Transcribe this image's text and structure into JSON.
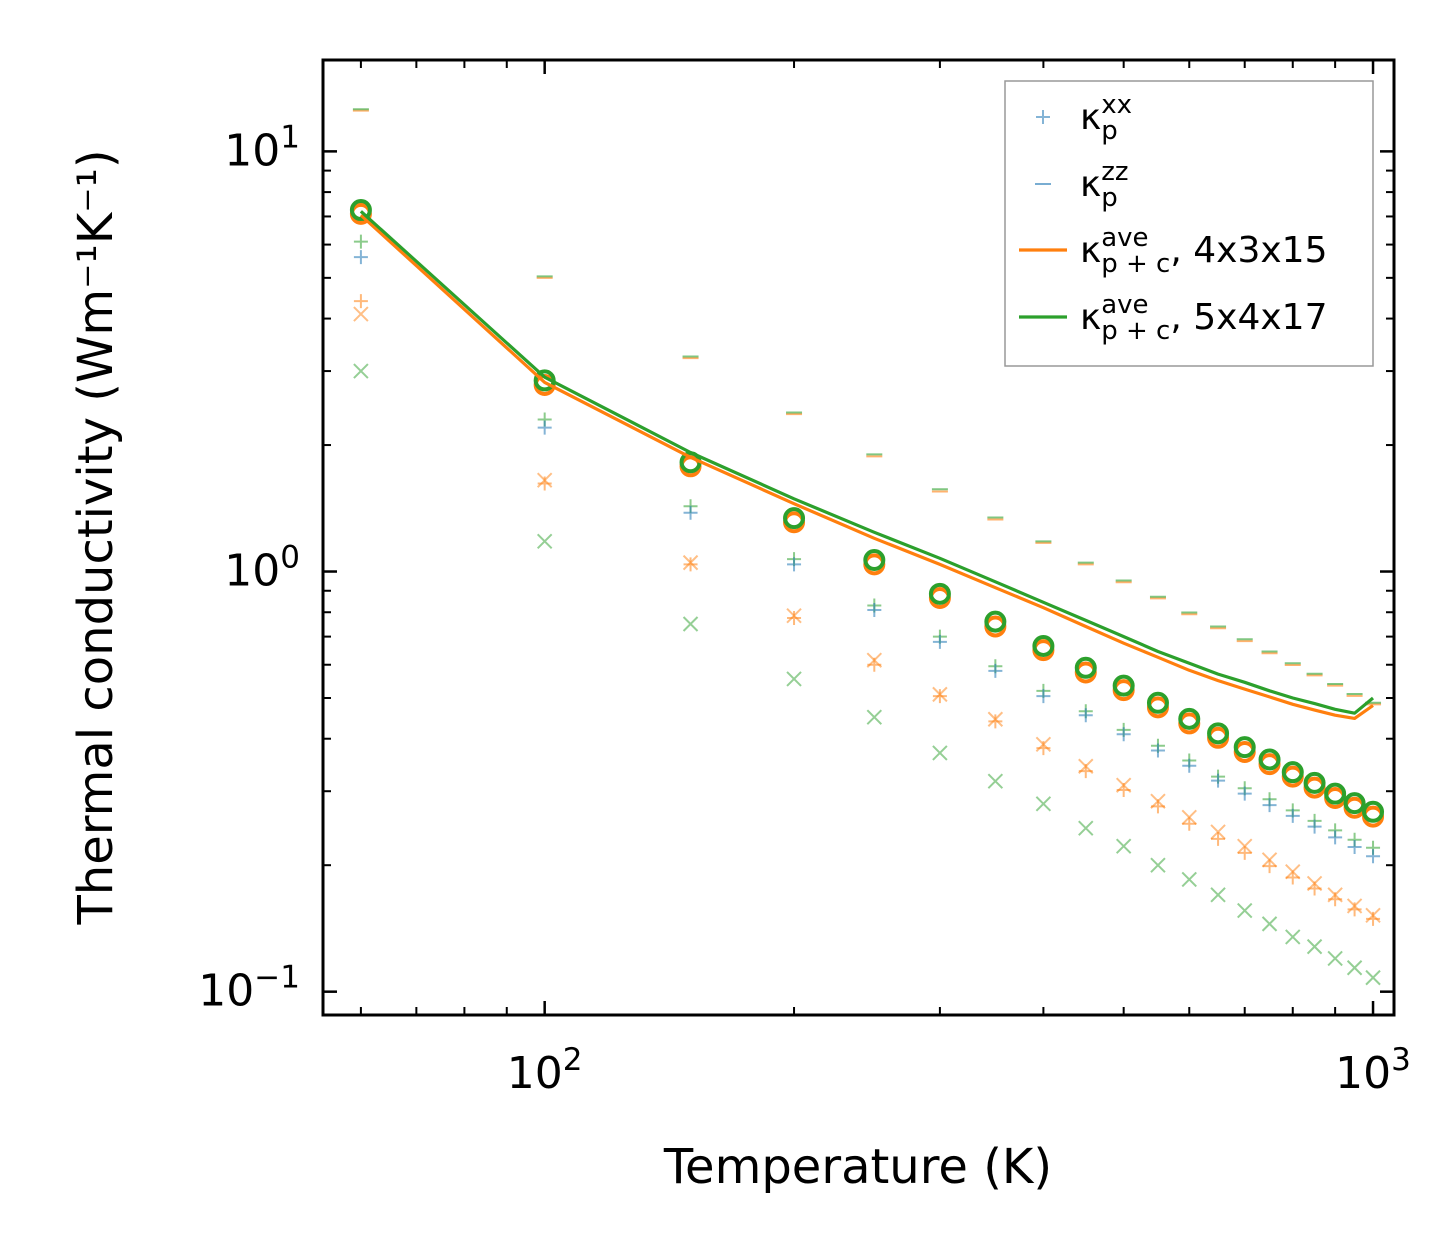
{
  "chart_data": {
    "type": "scatter",
    "xscale": "log",
    "yscale": "log",
    "xlim": [
      54,
      1060
    ],
    "ylim": [
      0.088,
      16.5
    ],
    "xlabel": "Temperature (K)",
    "ylabel": "Thermal conductivity (Wm⁻¹K⁻¹)",
    "x_ticks": [
      {
        "value": 100,
        "base": "10",
        "exp": "2"
      },
      {
        "value": 1000,
        "base": "10",
        "exp": "3"
      }
    ],
    "y_ticks": [
      {
        "value": 0.1,
        "base": "10",
        "exp": "−1"
      },
      {
        "value": 1,
        "base": "10",
        "exp": "0"
      },
      {
        "value": 10,
        "base": "10",
        "exp": "1"
      }
    ],
    "grid": false,
    "legend_position": "top-right",
    "colors": {
      "blue": "#1f77b4",
      "orange": "#ff7f0e",
      "green": "#2ca02c"
    },
    "temperatures": [
      60,
      100,
      150,
      200,
      250,
      300,
      350,
      400,
      450,
      500,
      550,
      600,
      650,
      700,
      750,
      800,
      850,
      900,
      950,
      1000
    ],
    "series": [
      {
        "name": "kp_xx_orange",
        "marker": "plus",
        "color": "orange",
        "values": [
          4.4,
          1.62,
          1.04,
          0.775,
          0.6,
          0.505,
          0.44,
          0.38,
          0.335,
          0.302,
          0.276,
          0.251,
          0.231,
          0.214,
          0.199,
          0.187,
          0.176,
          0.166,
          0.157,
          0.149
        ]
      },
      {
        "name": "kp_xx_green",
        "marker": "plus",
        "color": "green",
        "values": [
          6.1,
          2.3,
          1.43,
          1.07,
          0.83,
          0.7,
          0.595,
          0.52,
          0.465,
          0.42,
          0.385,
          0.355,
          0.325,
          0.305,
          0.287,
          0.27,
          0.255,
          0.242,
          0.23,
          0.22
        ]
      },
      {
        "name": "kp_xx_blue",
        "marker": "plus",
        "color": "blue",
        "values": [
          5.6,
          2.2,
          1.38,
          1.04,
          0.81,
          0.68,
          0.58,
          0.505,
          0.455,
          0.41,
          0.375,
          0.345,
          0.318,
          0.296,
          0.278,
          0.262,
          0.247,
          0.233,
          0.221,
          0.21
        ]
      },
      {
        "name": "kp_zz_orange",
        "marker": "hline",
        "color": "orange",
        "values": [
          12.5,
          5.0,
          3.22,
          2.37,
          1.88,
          1.55,
          1.33,
          1.17,
          1.04,
          0.943,
          0.863,
          0.791,
          0.733,
          0.683,
          0.639,
          0.599,
          0.566,
          0.535,
          0.506,
          0.483
        ]
      },
      {
        "name": "kp_zz_green",
        "marker": "hline",
        "color": "green",
        "values": [
          12.6,
          5.04,
          3.25,
          2.39,
          1.9,
          1.57,
          1.345,
          1.18,
          1.05,
          0.952,
          0.871,
          0.799,
          0.74,
          0.69,
          0.645,
          0.605,
          0.571,
          0.54,
          0.511,
          0.487
        ]
      },
      {
        "name": "kc_orange",
        "marker": "cross",
        "color": "orange",
        "values": [
          4.1,
          1.65,
          1.05,
          0.785,
          0.615,
          0.51,
          0.445,
          0.388,
          0.344,
          0.31,
          0.284,
          0.26,
          0.24,
          0.222,
          0.206,
          0.193,
          0.181,
          0.17,
          0.16,
          0.152
        ]
      },
      {
        "name": "kc_green",
        "marker": "cross",
        "color": "green",
        "values": [
          3.0,
          1.18,
          0.75,
          0.555,
          0.45,
          0.37,
          0.317,
          0.28,
          0.245,
          0.222,
          0.2,
          0.185,
          0.17,
          0.156,
          0.145,
          0.135,
          0.128,
          0.12,
          0.114,
          0.108
        ]
      },
      {
        "name": "kpc_circ_orange",
        "marker": "circle",
        "color": "orange",
        "values": [
          7.1,
          2.78,
          1.78,
          1.31,
          1.04,
          0.865,
          0.74,
          0.65,
          0.575,
          0.522,
          0.475,
          0.435,
          0.402,
          0.372,
          0.348,
          0.325,
          0.306,
          0.289,
          0.274,
          0.261
        ]
      },
      {
        "name": "kpc_circ_green",
        "marker": "circle",
        "color": "green",
        "values": [
          7.25,
          2.85,
          1.82,
          1.34,
          1.065,
          0.885,
          0.76,
          0.665,
          0.59,
          0.535,
          0.487,
          0.446,
          0.412,
          0.382,
          0.357,
          0.333,
          0.314,
          0.296,
          0.281,
          0.268
        ]
      },
      {
        "name": "kpc_ave_4x3x15",
        "marker": "line",
        "color": "orange",
        "values": [
          7.05,
          2.82,
          1.87,
          1.45,
          1.2,
          1.04,
          0.915,
          0.82,
          0.74,
          0.675,
          0.625,
          0.582,
          0.55,
          0.525,
          0.503,
          0.483,
          0.468,
          0.455,
          0.447,
          0.48
        ]
      },
      {
        "name": "kpc_ave_5x4x17",
        "marker": "line",
        "color": "green",
        "values": [
          7.2,
          2.9,
          1.92,
          1.49,
          1.24,
          1.075,
          0.945,
          0.845,
          0.765,
          0.7,
          0.645,
          0.605,
          0.57,
          0.545,
          0.52,
          0.5,
          0.485,
          0.47,
          0.46,
          0.5
        ]
      }
    ],
    "legend": [
      {
        "marker": "plus",
        "color": "blue",
        "symbol": "κ",
        "sub": "p",
        "sup": "xx",
        "tail": ""
      },
      {
        "marker": "hline",
        "color": "blue",
        "symbol": "κ",
        "sub": "p",
        "sup": "zz",
        "tail": ""
      },
      {
        "marker": "line",
        "color": "orange",
        "symbol": "κ",
        "sub": "p + c",
        "sup": "ave",
        "tail": ", 4x3x15"
      },
      {
        "marker": "line",
        "color": "green",
        "symbol": "κ",
        "sub": "p + c",
        "sup": "ave",
        "tail": ", 5x4x17"
      }
    ]
  }
}
